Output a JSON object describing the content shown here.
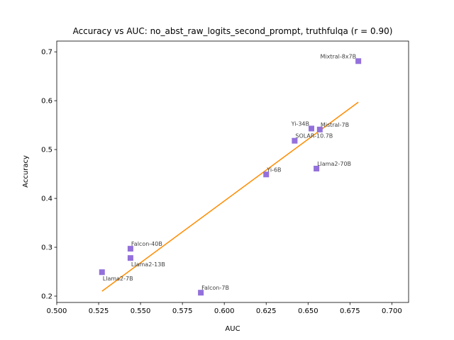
{
  "chart_data": {
    "type": "scatter",
    "title": "Accuracy vs AUC: no_abst_raw_logits_second_prompt, truthfulqa (r = 0.90)",
    "xlabel": "AUC",
    "ylabel": "Accuracy",
    "xlim": [
      0.5,
      0.71
    ],
    "ylim": [
      0.187,
      0.722
    ],
    "xticks": [
      "0.500",
      "0.525",
      "0.550",
      "0.575",
      "0.600",
      "0.625",
      "0.650",
      "0.675",
      "0.700"
    ],
    "yticks": [
      "0.2",
      "0.3",
      "0.4",
      "0.5",
      "0.6",
      "0.7"
    ],
    "grid": false,
    "marker_color": "#9370db",
    "line_color": "#ff8c00",
    "points": [
      {
        "label": "Mixtral-8x7B",
        "x": 0.68,
        "y": 0.681
      },
      {
        "label": "Yi-34B",
        "x": 0.652,
        "y": 0.543
      },
      {
        "label": "Mistral-7B",
        "x": 0.657,
        "y": 0.541
      },
      {
        "label": "SOLAR-10.7B",
        "x": 0.642,
        "y": 0.518
      },
      {
        "label": "Llama2-70B",
        "x": 0.655,
        "y": 0.461
      },
      {
        "label": "Yi-6B",
        "x": 0.625,
        "y": 0.449
      },
      {
        "label": "Falcon-40B",
        "x": 0.544,
        "y": 0.297
      },
      {
        "label": "Llama2-13B",
        "x": 0.544,
        "y": 0.278
      },
      {
        "label": "Llama2-7B",
        "x": 0.527,
        "y": 0.249
      },
      {
        "label": "Falcon-7B",
        "x": 0.586,
        "y": 0.207
      }
    ],
    "fit_line": {
      "x": [
        0.527,
        0.68
      ],
      "y": [
        0.21,
        0.597
      ]
    }
  }
}
